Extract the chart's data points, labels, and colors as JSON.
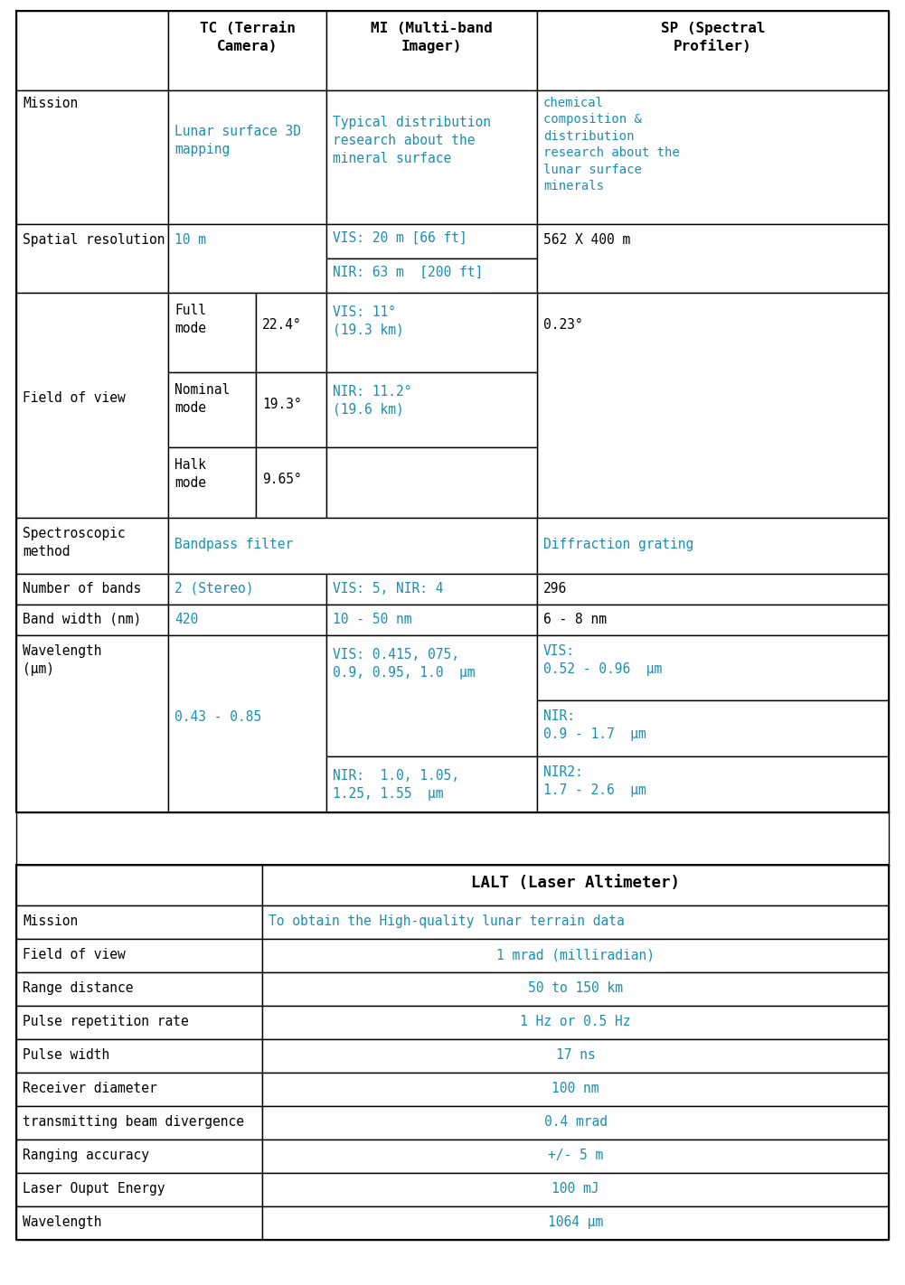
{
  "black_color": "#000000",
  "cyan_color": "#1a8fb0",
  "font_family": "monospace",
  "lalt_rows": [
    [
      "Mission",
      "To obtain the High-quality lunar terrain data"
    ],
    [
      "Field of view",
      "1 mrad (milliradian)"
    ],
    [
      "Range distance",
      "50 to 150 km"
    ],
    [
      "Pulse repetition rate",
      "1 Hz or 0.5 Hz"
    ],
    [
      "Pulse width",
      "17 ns"
    ],
    [
      "Receiver diameter",
      "100 nm"
    ],
    [
      "transmitting beam divergence",
      "0.4 mrad"
    ],
    [
      "Ranging accuracy",
      "+/- 5 m"
    ],
    [
      "Laser Ouput Energy",
      "100 mJ"
    ],
    [
      "Wavelength",
      "1064 μm"
    ]
  ]
}
